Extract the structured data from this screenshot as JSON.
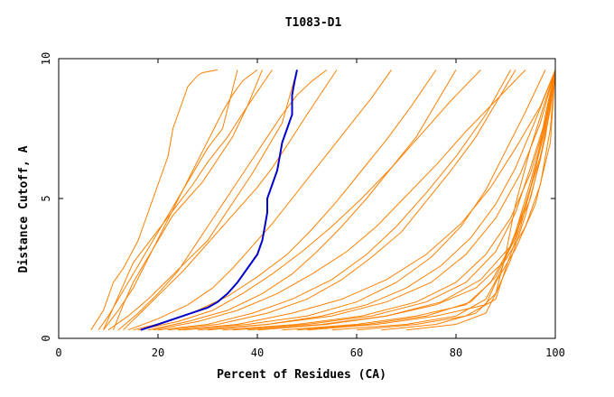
{
  "chart_data": {
    "type": "line",
    "title": "T1083-D1",
    "xlabel": "Percent of Residues (CA)",
    "ylabel": "Distance Cutoff, A",
    "xlim": [
      0,
      100
    ],
    "ylim": [
      0,
      10
    ],
    "x_ticks": [
      "0",
      "20",
      "40",
      "60",
      "80",
      "100"
    ],
    "y_ticks": [
      "0",
      "5",
      "10"
    ],
    "grid": false,
    "legend": "none",
    "colors": {
      "models": "#ff8000",
      "highlight": "#0000cc"
    },
    "highlight_series": {
      "x": [
        16.5,
        20,
        25,
        30,
        32,
        34,
        36,
        38,
        40,
        41,
        41.5,
        42,
        42,
        43,
        44,
        44.5,
        45,
        46,
        47,
        47,
        47.5,
        48
      ],
      "y": [
        0.3,
        0.5,
        0.8,
        1.1,
        1.3,
        1.6,
        2.0,
        2.5,
        3.0,
        3.5,
        4.0,
        4.5,
        5.0,
        5.5,
        6.0,
        6.5,
        7.0,
        7.5,
        8.0,
        8.7,
        9.2,
        9.6
      ]
    },
    "model_series": [
      {
        "x": [
          6.5,
          9,
          11,
          13,
          14.5,
          16,
          17,
          18,
          19,
          20,
          21,
          22,
          22.5,
          23,
          24,
          25,
          26,
          27,
          28,
          29,
          32
        ],
        "y": [
          0.3,
          1,
          2,
          2.5,
          3,
          3.5,
          4,
          4.5,
          5,
          5.5,
          6,
          6.5,
          7,
          7.5,
          8,
          8.5,
          9,
          9.2,
          9.4,
          9.5,
          9.6
        ]
      },
      {
        "x": [
          9,
          12,
          15,
          17,
          19,
          21,
          23,
          25,
          27,
          29,
          31,
          33,
          35,
          37,
          40
        ],
        "y": [
          0.3,
          1,
          1.8,
          2.5,
          3.2,
          3.9,
          4.6,
          5.3,
          6,
          6.7,
          7.4,
          8.1,
          8.7,
          9.2,
          9.6
        ]
      },
      {
        "x": [
          12,
          16,
          20,
          24,
          27,
          30,
          33,
          36,
          39,
          42,
          45,
          48,
          51,
          54
        ],
        "y": [
          0.3,
          0.9,
          1.6,
          2.4,
          3.2,
          4.0,
          4.8,
          5.6,
          6.4,
          7.2,
          8.0,
          8.7,
          9.2,
          9.6
        ]
      },
      {
        "x": [
          14,
          20,
          26,
          31,
          35,
          39,
          43,
          47,
          51,
          55,
          59,
          63,
          67
        ],
        "y": [
          0.3,
          0.7,
          1.2,
          1.8,
          2.5,
          3.3,
          4.1,
          5.0,
          5.9,
          6.8,
          7.7,
          8.6,
          9.6
        ]
      },
      {
        "x": [
          18,
          26,
          34,
          41,
          47,
          52,
          57,
          62,
          67,
          72,
          76,
          80
        ],
        "y": [
          0.3,
          0.6,
          1.0,
          1.6,
          2.3,
          3.1,
          4.0,
          5.0,
          6.1,
          7.2,
          8.4,
          9.6
        ]
      },
      {
        "x": [
          22,
          32,
          42,
          50,
          57,
          63,
          69,
          74,
          79,
          84,
          88,
          92
        ],
        "y": [
          0.3,
          0.5,
          0.9,
          1.4,
          2.1,
          2.9,
          3.8,
          4.9,
          6.0,
          7.2,
          8.4,
          9.6
        ]
      },
      {
        "x": [
          30,
          42,
          53,
          62,
          70,
          77,
          83,
          88,
          92,
          96,
          100
        ],
        "y": [
          0.3,
          0.5,
          0.8,
          1.2,
          1.8,
          2.6,
          3.6,
          4.8,
          6.1,
          7.8,
          9.6
        ]
      },
      {
        "x": [
          40,
          54,
          66,
          76,
          84,
          90,
          94,
          97,
          99,
          100
        ],
        "y": [
          0.3,
          0.5,
          0.8,
          1.2,
          1.8,
          2.8,
          4.0,
          5.5,
          7.5,
          9.6
        ]
      },
      {
        "x": [
          50,
          64,
          76,
          86,
          88,
          92,
          96,
          99,
          100
        ],
        "y": [
          0.3,
          0.5,
          0.8,
          1.2,
          2.0,
          3.2,
          4.8,
          7.0,
          9.6
        ]
      },
      {
        "x": [
          60,
          72,
          82,
          88,
          90,
          93,
          96,
          98,
          100
        ],
        "y": [
          0.3,
          0.5,
          0.8,
          1.4,
          2.5,
          4.0,
          6.0,
          8.0,
          9.6
        ]
      },
      {
        "x": [
          8,
          10,
          12,
          14,
          16,
          18,
          20,
          22,
          24,
          26,
          28,
          30,
          33,
          36
        ],
        "y": [
          0.3,
          0.8,
          1.4,
          2.0,
          2.6,
          3.2,
          3.8,
          4.4,
          5.0,
          5.6,
          6.2,
          6.8,
          7.5,
          9.6
        ]
      },
      {
        "x": [
          10,
          14,
          18,
          22,
          26,
          30,
          33,
          36,
          39,
          42,
          45,
          48
        ],
        "y": [
          0.3,
          0.8,
          1.4,
          2.1,
          2.8,
          3.5,
          4.3,
          5.1,
          5.9,
          6.8,
          7.7,
          9.6
        ]
      },
      {
        "x": [
          15,
          22,
          28,
          34,
          40,
          46,
          51,
          56,
          61,
          66,
          71,
          76
        ],
        "y": [
          0.3,
          0.6,
          1.0,
          1.5,
          2.2,
          3.0,
          3.9,
          4.9,
          6.0,
          7.1,
          8.3,
          9.6
        ]
      },
      {
        "x": [
          20,
          30,
          39,
          47,
          55,
          62,
          68,
          74,
          80,
          86,
          91
        ],
        "y": [
          0.3,
          0.5,
          0.9,
          1.4,
          2.1,
          3.0,
          4.0,
          5.2,
          6.5,
          8.0,
          9.6
        ]
      },
      {
        "x": [
          25,
          38,
          50,
          60,
          68,
          75,
          81,
          86,
          90,
          94,
          98
        ],
        "y": [
          0.3,
          0.5,
          0.8,
          1.3,
          2.0,
          2.9,
          4.0,
          5.3,
          6.7,
          8.1,
          9.6
        ]
      },
      {
        "x": [
          35,
          50,
          63,
          74,
          82,
          88,
          92,
          95,
          98,
          100
        ],
        "y": [
          0.3,
          0.5,
          0.8,
          1.3,
          2.0,
          3.1,
          4.5,
          6.1,
          7.8,
          9.6
        ]
      },
      {
        "x": [
          45,
          60,
          72,
          82,
          87,
          91,
          94,
          97,
          99,
          100
        ],
        "y": [
          0.3,
          0.5,
          0.8,
          1.2,
          2.0,
          3.3,
          4.8,
          6.5,
          8.2,
          9.6
        ]
      },
      {
        "x": [
          55,
          70,
          80,
          86,
          89,
          92,
          95,
          98,
          100
        ],
        "y": [
          0.3,
          0.5,
          0.8,
          1.4,
          2.4,
          3.8,
          5.6,
          7.6,
          9.6
        ]
      },
      {
        "x": [
          65,
          76,
          84,
          88,
          91,
          94,
          97,
          99,
          100
        ],
        "y": [
          0.3,
          0.5,
          0.9,
          1.6,
          2.8,
          4.4,
          6.4,
          8.2,
          9.6
        ]
      },
      {
        "x": [
          11,
          13,
          15,
          17,
          19,
          21,
          23,
          26,
          29,
          32,
          35,
          38,
          41
        ],
        "y": [
          0.3,
          1.2,
          2.0,
          2.6,
          3.2,
          3.8,
          4.4,
          5.0,
          5.6,
          6.4,
          7.2,
          8.3,
          9.6
        ]
      },
      {
        "x": [
          16,
          24,
          31,
          37,
          43,
          49,
          55,
          61,
          67,
          73,
          79,
          85
        ],
        "y": [
          0.3,
          0.6,
          1.0,
          1.6,
          2.3,
          3.1,
          4.0,
          5.0,
          6.1,
          7.3,
          8.5,
          9.6
        ]
      },
      {
        "x": [
          24,
          36,
          47,
          57,
          66,
          74,
          81,
          87,
          92,
          97,
          100
        ],
        "y": [
          0.3,
          0.5,
          0.9,
          1.4,
          2.1,
          3.0,
          4.1,
          5.4,
          6.8,
          8.3,
          9.6
        ]
      },
      {
        "x": [
          33,
          48,
          61,
          72,
          80,
          86,
          91,
          95,
          98,
          100
        ],
        "y": [
          0.3,
          0.5,
          0.8,
          1.3,
          2.0,
          3.0,
          4.3,
          5.9,
          7.7,
          9.6
        ]
      },
      {
        "x": [
          13,
          17,
          21,
          25,
          28,
          31,
          34,
          37,
          40,
          43,
          46,
          50,
          56
        ],
        "y": [
          0.3,
          1.0,
          1.7,
          2.4,
          3.0,
          3.6,
          4.2,
          4.8,
          5.4,
          6.1,
          6.9,
          8.0,
          9.6
        ]
      },
      {
        "x": [
          28,
          42,
          55,
          66,
          75,
          82,
          88,
          93,
          97,
          100
        ],
        "y": [
          0.3,
          0.5,
          0.8,
          1.3,
          2.0,
          3.0,
          4.3,
          5.9,
          7.7,
          9.6
        ]
      },
      {
        "x": [
          48,
          62,
          74,
          83,
          88,
          92,
          95,
          98,
          100
        ],
        "y": [
          0.3,
          0.5,
          0.8,
          1.3,
          2.2,
          3.6,
          5.4,
          7.5,
          9.6
        ]
      },
      {
        "x": [
          70,
          80,
          86,
          88,
          90,
          92,
          95,
          98,
          100
        ],
        "y": [
          0.3,
          0.5,
          0.9,
          1.6,
          3.0,
          4.8,
          6.8,
          8.5,
          9.6
        ]
      },
      {
        "x": [
          9,
          11,
          13,
          15,
          18,
          21,
          24,
          27,
          30,
          34,
          38,
          43
        ],
        "y": [
          0.3,
          1.1,
          1.9,
          2.7,
          3.4,
          4.1,
          4.8,
          5.5,
          6.3,
          7.2,
          8.3,
          9.6
        ]
      },
      {
        "x": [
          19,
          28,
          36,
          44,
          51,
          58,
          64,
          70,
          76,
          82,
          88,
          94
        ],
        "y": [
          0.3,
          0.6,
          1.0,
          1.6,
          2.3,
          3.1,
          4.0,
          5.1,
          6.2,
          7.4,
          8.5,
          9.6
        ]
      },
      {
        "x": [
          38,
          53,
          66,
          77,
          85,
          91,
          95,
          98,
          100
        ],
        "y": [
          0.3,
          0.5,
          0.8,
          1.3,
          2.1,
          3.3,
          5.0,
          7.2,
          9.6
        ]
      }
    ]
  }
}
